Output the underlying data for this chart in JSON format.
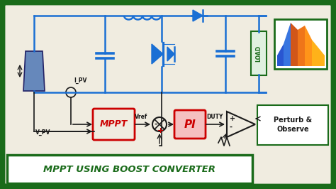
{
  "bg_color": "#1a6b1a",
  "inner_bg": "#f0ece0",
  "title": "MPPT USING BOOST CONVERTER",
  "title_color": "#1a6b1a",
  "circuit_color": "#1a6fd4",
  "control_color": "#1a1a1a",
  "mppt_fill": "#f0ece0",
  "mppt_text_color": "#cc0000",
  "pi_fill": "#f5c0c0",
  "pi_text_color": "#cc0000",
  "perturb_fill": "#ffffff",
  "perturb_text_color": "#1a1a1a",
  "load_fill": "#e0f0e0",
  "load_text_color": "#1a6b1a",
  "arrow_color": "#1a1a1a",
  "duty_text": "DUTY",
  "vref_text": "Vref",
  "ipv_text": "I_PV",
  "vpv_text": "V_PV"
}
